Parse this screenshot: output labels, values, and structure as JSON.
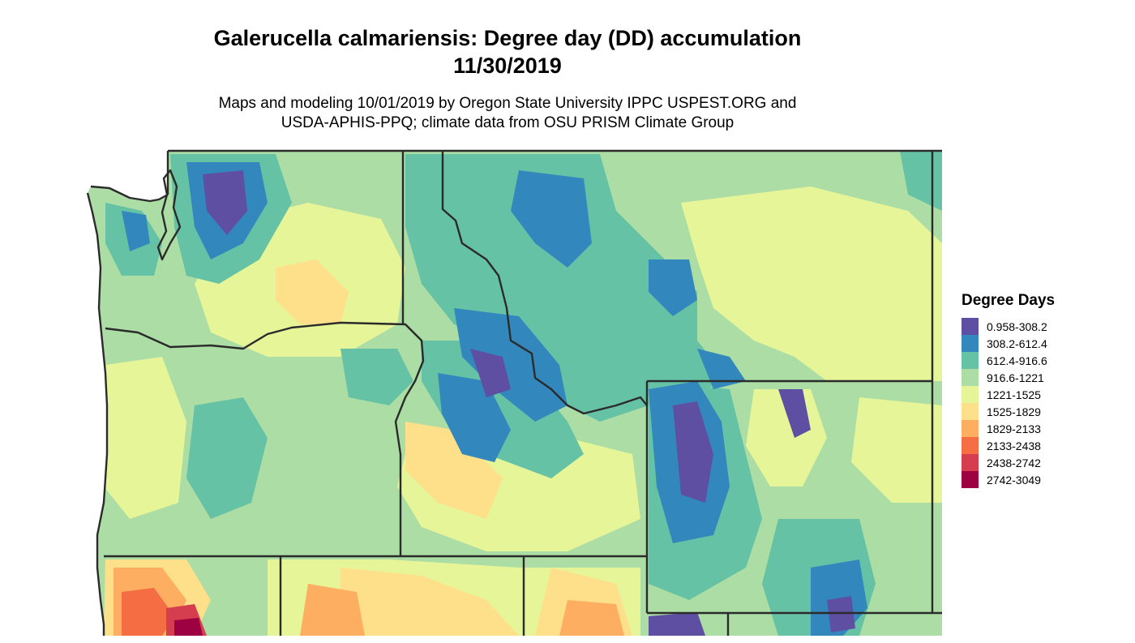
{
  "title_line1": "Galerucella calmariensis: Degree day (DD) accumulation",
  "title_line2": "11/30/2019",
  "subtitle_line1": "Maps and modeling 10/01/2019 by Oregon State University IPPC USPEST.ORG and",
  "subtitle_line2": "USDA-APHIS-PPQ; climate data from OSU PRISM Climate Group",
  "legend": {
    "title": "Degree Days",
    "items": [
      {
        "label": "0.958-308.2",
        "color": "#5E4FA2"
      },
      {
        "label": "308.2-612.4",
        "color": "#3288BD"
      },
      {
        "label": "612.4-916.6",
        "color": "#66C2A5"
      },
      {
        "label": "916.6-1221",
        "color": "#ABDDA4"
      },
      {
        "label": "1221-1525",
        "color": "#E6F598"
      },
      {
        "label": "1525-1829",
        "color": "#FEE08B"
      },
      {
        "label": "1829-2133",
        "color": "#FDAE61"
      },
      {
        "label": "2133-2438",
        "color": "#F46D43"
      },
      {
        "label": "2438-2742",
        "color": "#D53E4F"
      },
      {
        "label": "2742-3049",
        "color": "#9E0142"
      }
    ]
  },
  "colors": {
    "boundary": "#2b2b2b",
    "background": "#ffffff"
  }
}
